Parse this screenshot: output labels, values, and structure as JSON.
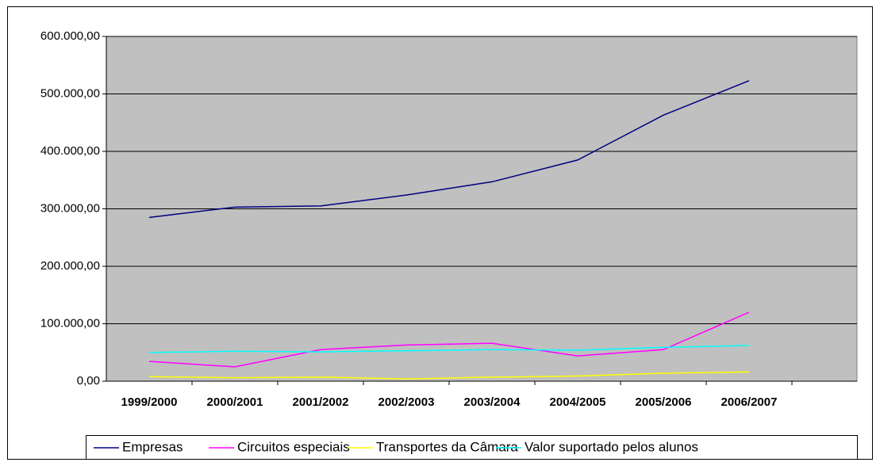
{
  "chart_data": {
    "type": "line",
    "categories": [
      "1999/2000",
      "2000/2001",
      "2001/2002",
      "2002/2003",
      "2003/2004",
      "2004/2005",
      "2005/2006",
      "2006/2007"
    ],
    "series": [
      {
        "name": "Empresas",
        "color": "#000080",
        "values": [
          285000,
          303000,
          305000,
          324000,
          347000,
          385000,
          463000,
          523000
        ]
      },
      {
        "name": "Circuitos especiais",
        "color": "#ff00ff",
        "values": [
          34500,
          25000,
          55000,
          63000,
          66000,
          44000,
          55000,
          120000
        ]
      },
      {
        "name": "Transportes da Câmara",
        "color": "#ffff00",
        "values": [
          8000,
          6000,
          7000,
          4000,
          7000,
          9000,
          14000,
          16000
        ]
      },
      {
        "name": "Valor suportado pelos alunos",
        "color": "#00ffff",
        "values": [
          50000,
          52000,
          51000,
          53000,
          55000,
          54000,
          59000,
          62000
        ]
      }
    ],
    "ylim": [
      0,
      600000
    ],
    "yticks": [
      {
        "value": 0,
        "label": "0,00"
      },
      {
        "value": 100000,
        "label": "100.000,00"
      },
      {
        "value": 200000,
        "label": "200.000,00"
      },
      {
        "value": 300000,
        "label": "300.000,00"
      },
      {
        "value": 400000,
        "label": "400.000,00"
      },
      {
        "value": 500000,
        "label": "500.000,00"
      },
      {
        "value": 600000,
        "label": "600.000,00"
      }
    ],
    "grid": true,
    "legend": "bottom"
  }
}
